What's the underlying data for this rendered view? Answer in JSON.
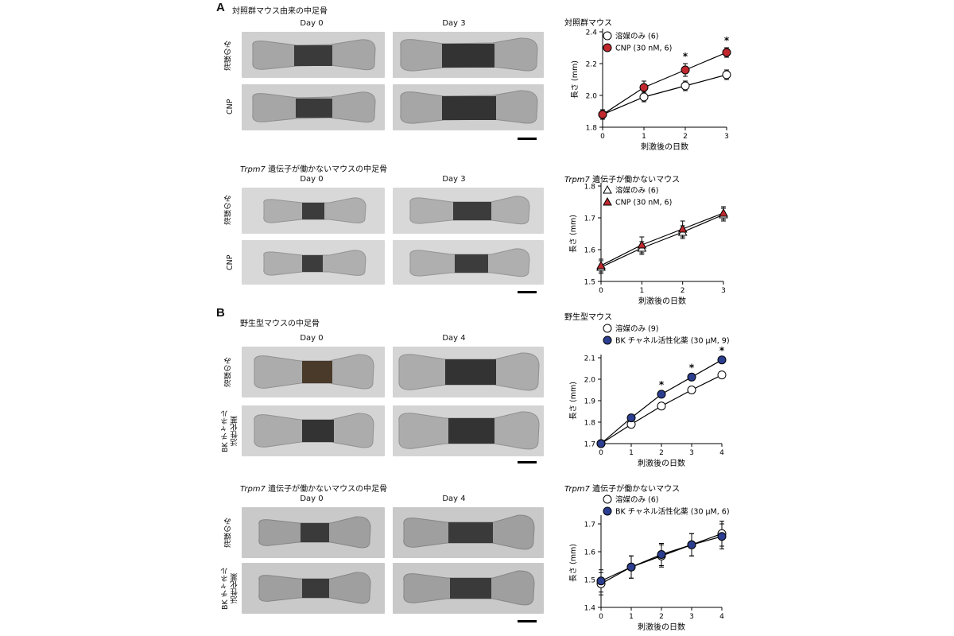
{
  "panelA": {
    "letter": "A",
    "sub1": {
      "title": "対照群マウス由来の中足骨",
      "days": [
        "Day 0",
        "Day 3"
      ],
      "rows": [
        "溶媒のみ",
        "CNP"
      ]
    },
    "sub2": {
      "title_italic": "Trpm7",
      "title_rest": " 遺伝子が働かないマウスの中足骨",
      "days": [
        "Day 0",
        "Day 3"
      ],
      "rows": [
        "溶媒のみ",
        "CNP"
      ]
    }
  },
  "panelB": {
    "letter": "B",
    "sub1": {
      "title": "野生型マウスの中足骨",
      "days": [
        "Day 0",
        "Day 4"
      ],
      "rows": [
        "溶媒のみ",
        "BK チャネル\n活性化薬"
      ]
    },
    "sub2": {
      "title_italic": "Trpm7",
      "title_rest": " 遺伝子が働かないマウスの中足骨",
      "days": [
        "Day 0",
        "Day 4"
      ],
      "rows": [
        "溶媒のみ",
        "BK チャネル\n活性化薬"
      ]
    }
  },
  "chart_data": [
    {
      "type": "line",
      "title": "対照群マウス",
      "xlabel": "刺激後の日数",
      "ylabel": "長さ (mm)",
      "x": [
        0,
        1,
        2,
        3
      ],
      "xlim": [
        0,
        3
      ],
      "ylim": [
        1.8,
        2.4
      ],
      "yticks": [
        1.8,
        2.0,
        2.2,
        2.4
      ],
      "yticklabels": [
        "1.8",
        "2.0",
        "2.2",
        "2.4"
      ],
      "series": [
        {
          "name": "溶媒のみ (6)",
          "marker": "circle-open",
          "color": "#ffffff",
          "values": [
            1.88,
            1.99,
            2.06,
            2.13
          ],
          "err": [
            0.03,
            0.03,
            0.03,
            0.03
          ]
        },
        {
          "name": "CNP (30 nM, 6)",
          "marker": "circle-filled",
          "color": "#c0282e",
          "values": [
            1.88,
            2.05,
            2.16,
            2.27
          ],
          "err": [
            0.03,
            0.04,
            0.04,
            0.03
          ]
        }
      ],
      "significance_x": [
        2,
        3
      ],
      "significance_mark": "*",
      "legend": "top-left"
    },
    {
      "type": "line",
      "title_italic": "Trpm7",
      "title": " 遺伝子が働かないマウス",
      "xlabel": "刺激後の日数",
      "ylabel": "長さ (mm)",
      "x": [
        0,
        1,
        2,
        3
      ],
      "xlim": [
        0,
        3
      ],
      "ylim": [
        1.5,
        1.8
      ],
      "yticks": [
        1.5,
        1.6,
        1.7,
        1.8
      ],
      "yticklabels": [
        "1.5",
        "1.6",
        "1.7",
        "1.8"
      ],
      "series": [
        {
          "name": "溶媒のみ (6)",
          "marker": "triangle-open",
          "color": "#ffffff",
          "values": [
            1.545,
            1.605,
            1.655,
            1.71
          ],
          "err": [
            0.02,
            0.02,
            0.02,
            0.02
          ]
        },
        {
          "name": "CNP (30 nM, 6)",
          "marker": "triangle-filled",
          "color": "#c0282e",
          "values": [
            1.55,
            1.615,
            1.665,
            1.715
          ],
          "err": [
            0.02,
            0.025,
            0.025,
            0.02
          ]
        }
      ],
      "legend": "top-left"
    },
    {
      "type": "line",
      "title": "野生型マウス",
      "xlabel": "刺激後の日数",
      "ylabel": "長さ (mm)",
      "x": [
        0,
        1,
        2,
        3,
        4
      ],
      "xlim": [
        0,
        4
      ],
      "ylim": [
        1.7,
        2.1
      ],
      "yticks": [
        1.7,
        1.8,
        1.9,
        2.0,
        2.1
      ],
      "yticklabels": [
        "1.7",
        "1.8",
        "1.9",
        "2.0",
        "2.1"
      ],
      "series": [
        {
          "name": "溶媒のみ (9)",
          "marker": "circle-open",
          "color": "#ffffff",
          "values": [
            1.7,
            1.79,
            1.875,
            1.95,
            2.02
          ],
          "err": [
            0.008,
            0.01,
            0.01,
            0.01,
            0.01
          ]
        },
        {
          "name": "BK チャネル活性化薬 (30 µM, 9)",
          "marker": "circle-filled",
          "color": "#2c3e8f",
          "values": [
            1.7,
            1.82,
            1.93,
            2.01,
            2.09
          ],
          "err": [
            0.008,
            0.01,
            0.01,
            0.01,
            0.01
          ]
        }
      ],
      "significance_x": [
        2,
        3,
        4
      ],
      "significance_mark": "*",
      "legend": "top-left"
    },
    {
      "type": "line",
      "title_italic": "Trpm7",
      "title": " 遺伝子が働かないマウス",
      "xlabel": "刺激後の日数",
      "ylabel": "長さ (mm)",
      "x": [
        0,
        1,
        2,
        3,
        4
      ],
      "xlim": [
        0,
        4
      ],
      "ylim": [
        1.4,
        1.72
      ],
      "yticks": [
        1.4,
        1.5,
        1.6,
        1.7
      ],
      "yticklabels": [
        "1.4",
        "1.5",
        "1.6",
        "1.7"
      ],
      "series": [
        {
          "name": "溶媒のみ (6)",
          "marker": "circle-open",
          "color": "#ffffff",
          "values": [
            1.485,
            1.545,
            1.585,
            1.625,
            1.665
          ],
          "err": [
            0.04,
            0.04,
            0.04,
            0.04,
            0.045
          ]
        },
        {
          "name": "BK チャネル活性化薬 (30 µM, 6)",
          "marker": "circle-filled",
          "color": "#2c3e8f",
          "values": [
            1.495,
            1.545,
            1.59,
            1.625,
            1.655
          ],
          "err": [
            0.04,
            0.04,
            0.04,
            0.04,
            0.045
          ]
        }
      ],
      "legend": "top-left"
    }
  ]
}
